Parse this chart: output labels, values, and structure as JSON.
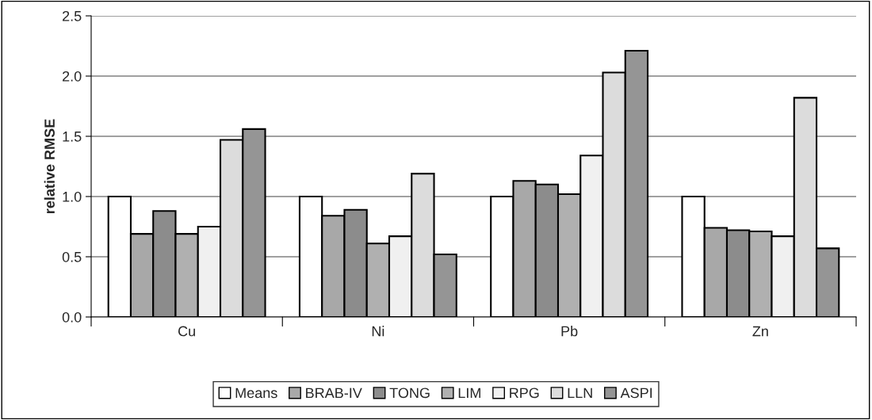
{
  "chart_data": {
    "type": "bar",
    "ylabel": "relative RMSE",
    "categories": [
      "Cu",
      "Ni",
      "Pb",
      "Zn"
    ],
    "series": [
      {
        "name": "Means",
        "color": "#ffffff",
        "values": [
          1.0,
          1.0,
          1.0,
          1.0
        ]
      },
      {
        "name": "BRAB-IV",
        "color": "#a8a8a8",
        "values": [
          0.69,
          0.84,
          1.13,
          0.74
        ]
      },
      {
        "name": "TONG",
        "color": "#8c8c8c",
        "values": [
          0.88,
          0.89,
          1.1,
          0.72
        ]
      },
      {
        "name": "LIM",
        "color": "#b0b0b0",
        "values": [
          0.69,
          0.61,
          1.02,
          0.71
        ]
      },
      {
        "name": "RPG",
        "color": "#f0f0f0",
        "values": [
          0.75,
          0.67,
          1.34,
          0.67
        ]
      },
      {
        "name": "LLN",
        "color": "#dcdcdc",
        "values": [
          1.47,
          1.19,
          2.03,
          1.82
        ]
      },
      {
        "name": "ASPI",
        "color": "#959595",
        "values": [
          1.56,
          0.52,
          2.21,
          0.57
        ]
      }
    ],
    "ylim": [
      0,
      2.5
    ],
    "yticks": [
      {
        "value": 0,
        "label": "0.0"
      },
      0.5,
      {
        "value": 1,
        "label": "1.0"
      },
      1.5,
      {
        "value": 2,
        "label": "2.0"
      },
      2.5
    ],
    "grid": "y",
    "legend": "bottom"
  }
}
